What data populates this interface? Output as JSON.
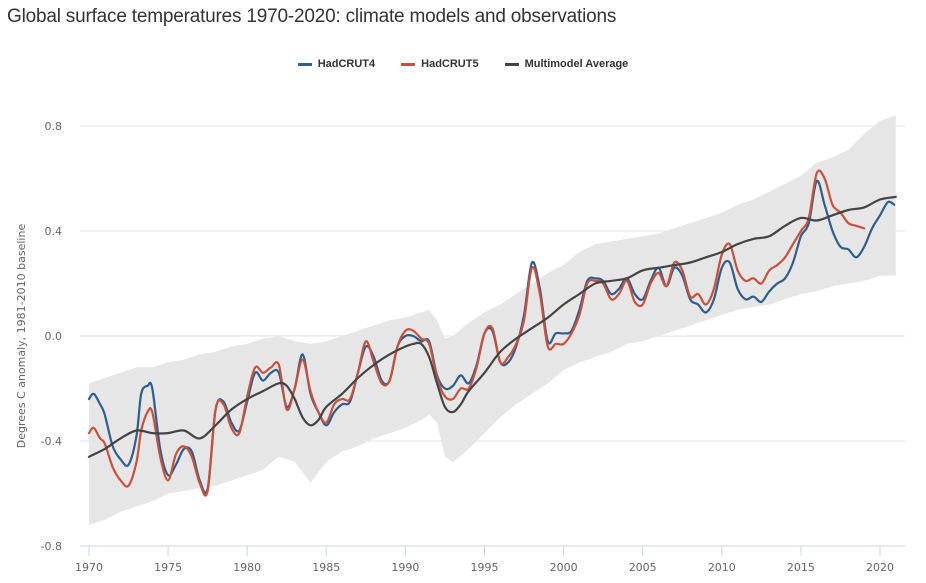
{
  "title": "Global surface temperatures 1970-2020: climate models and observations",
  "legend": [
    {
      "label": "HadCRUT4",
      "color": "#2e5e8c"
    },
    {
      "label": "HadCRUT5",
      "color": "#c8503c"
    },
    {
      "label": "Multimodel Average",
      "color": "#444444"
    }
  ],
  "chart_data": {
    "type": "line",
    "title": "Global surface temperatures 1970-2020: climate models and observations",
    "xlabel": "",
    "ylabel": "Degrees C anomaly, 1981-2010 baseline",
    "xlim": [
      1970,
      2021.2
    ],
    "ylim": [
      -0.8,
      0.85
    ],
    "x_ticks": [
      1970,
      1975,
      1980,
      1985,
      1990,
      1995,
      2000,
      2005,
      2010,
      2015,
      2020
    ],
    "y_ticks": [
      -0.8,
      -0.4,
      0.0,
      0.4,
      0.8
    ],
    "y_tick_labels": [
      "-0.8",
      "-0.4",
      "0.0",
      "0.4",
      "0.8"
    ],
    "grid": true,
    "legend_position": "top-center",
    "band": {
      "name": "Model range",
      "color": "#e6e6e6",
      "x": [
        1970,
        1971,
        1972,
        1973,
        1974,
        1975,
        1976,
        1977,
        1978,
        1979,
        1980,
        1981,
        1982,
        1983,
        1984,
        1985,
        1986,
        1987,
        1988,
        1989,
        1990,
        1991,
        1991.5,
        1992,
        1992.5,
        1993,
        1994,
        1995,
        1996,
        1997,
        1998,
        1999,
        2000,
        2001,
        2002,
        2003,
        2004,
        2005,
        2006,
        2007,
        2008,
        2009,
        2010,
        2011,
        2012,
        2013,
        2014,
        2015,
        2016,
        2017,
        2018,
        2019,
        2020,
        2021
      ],
      "upper": [
        -0.18,
        -0.16,
        -0.14,
        -0.12,
        -0.12,
        -0.1,
        -0.09,
        -0.07,
        -0.06,
        -0.04,
        -0.03,
        -0.01,
        0.0,
        -0.02,
        -0.03,
        -0.02,
        0.0,
        0.02,
        0.04,
        0.06,
        0.07,
        0.09,
        0.1,
        0.06,
        -0.01,
        0.0,
        0.05,
        0.09,
        0.12,
        0.16,
        0.2,
        0.24,
        0.27,
        0.32,
        0.35,
        0.36,
        0.37,
        0.38,
        0.39,
        0.41,
        0.43,
        0.45,
        0.47,
        0.5,
        0.52,
        0.55,
        0.58,
        0.61,
        0.66,
        0.68,
        0.71,
        0.77,
        0.82,
        0.84
      ],
      "lower": [
        -0.72,
        -0.7,
        -0.67,
        -0.65,
        -0.63,
        -0.6,
        -0.59,
        -0.58,
        -0.57,
        -0.55,
        -0.53,
        -0.51,
        -0.46,
        -0.48,
        -0.56,
        -0.48,
        -0.44,
        -0.42,
        -0.39,
        -0.37,
        -0.35,
        -0.32,
        -0.3,
        -0.33,
        -0.46,
        -0.48,
        -0.43,
        -0.37,
        -0.31,
        -0.26,
        -0.22,
        -0.18,
        -0.13,
        -0.1,
        -0.08,
        -0.06,
        -0.03,
        -0.02,
        0.0,
        0.02,
        0.04,
        0.06,
        0.08,
        0.1,
        0.11,
        0.12,
        0.14,
        0.16,
        0.17,
        0.19,
        0.2,
        0.21,
        0.23,
        0.23
      ]
    },
    "series": [
      {
        "name": "HadCRUT4",
        "color": "#2e5e8c",
        "x": [
          1970,
          1970.3,
          1970.7,
          1971,
          1971.5,
          1972,
          1972.5,
          1973,
          1973.3,
          1973.7,
          1974,
          1974.5,
          1975,
          1975.5,
          1976,
          1976.5,
          1977,
          1977.5,
          1978,
          1978.5,
          1979,
          1979.5,
          1980,
          1980.5,
          1981,
          1981.5,
          1982,
          1982.5,
          1983,
          1983.5,
          1984,
          1984.5,
          1985,
          1985.5,
          1986,
          1986.5,
          1987,
          1987.5,
          1988,
          1988.5,
          1989,
          1989.5,
          1990,
          1990.5,
          1991,
          1991.5,
          1992,
          1992.5,
          1993,
          1993.5,
          1994,
          1994.5,
          1995,
          1995.5,
          1996,
          1996.5,
          1997,
          1997.5,
          1998,
          1998.5,
          1999,
          1999.5,
          2000,
          2000.5,
          2001,
          2001.5,
          2002,
          2002.5,
          2003,
          2003.5,
          2004,
          2004.5,
          2005,
          2005.5,
          2006,
          2006.5,
          2007,
          2007.5,
          2008,
          2008.5,
          2009,
          2009.5,
          2010,
          2010.5,
          2011,
          2011.5,
          2012,
          2012.5,
          2013,
          2013.5,
          2014,
          2014.5,
          2015,
          2015.5,
          2016,
          2016.5,
          2017,
          2017.5,
          2018,
          2018.5,
          2019,
          2019.5,
          2020,
          2020.5,
          2020.9
        ],
        "values": [
          -0.24,
          -0.22,
          -0.26,
          -0.3,
          -0.42,
          -0.47,
          -0.49,
          -0.38,
          -0.22,
          -0.19,
          -0.2,
          -0.43,
          -0.53,
          -0.49,
          -0.43,
          -0.44,
          -0.55,
          -0.58,
          -0.28,
          -0.25,
          -0.33,
          -0.36,
          -0.25,
          -0.14,
          -0.17,
          -0.14,
          -0.14,
          -0.27,
          -0.2,
          -0.07,
          -0.22,
          -0.29,
          -0.34,
          -0.29,
          -0.26,
          -0.25,
          -0.14,
          -0.04,
          -0.08,
          -0.17,
          -0.17,
          -0.04,
          0.0,
          0.0,
          -0.02,
          -0.02,
          -0.15,
          -0.2,
          -0.19,
          -0.15,
          -0.18,
          -0.11,
          0.01,
          0.02,
          -0.1,
          -0.1,
          -0.04,
          0.08,
          0.28,
          0.18,
          -0.02,
          0.01,
          0.01,
          0.02,
          0.1,
          0.21,
          0.22,
          0.21,
          0.16,
          0.18,
          0.22,
          0.16,
          0.14,
          0.21,
          0.26,
          0.19,
          0.26,
          0.23,
          0.14,
          0.12,
          0.09,
          0.14,
          0.26,
          0.28,
          0.18,
          0.14,
          0.15,
          0.13,
          0.17,
          0.2,
          0.22,
          0.28,
          0.38,
          0.43,
          0.59,
          0.5,
          0.4,
          0.34,
          0.33,
          0.3,
          0.34,
          0.41,
          0.46,
          0.51,
          0.5
        ]
      },
      {
        "name": "HadCRUT5",
        "color": "#c8503c",
        "x": [
          1970,
          1970.3,
          1970.7,
          1971,
          1971.5,
          1972,
          1972.5,
          1973,
          1973.3,
          1973.7,
          1974,
          1974.5,
          1975,
          1975.5,
          1976,
          1976.5,
          1977,
          1977.5,
          1978,
          1978.5,
          1979,
          1979.5,
          1980,
          1980.5,
          1981,
          1981.5,
          1982,
          1982.5,
          1983,
          1983.5,
          1984,
          1984.5,
          1985,
          1985.5,
          1986,
          1986.5,
          1987,
          1987.5,
          1988,
          1988.5,
          1989,
          1989.5,
          1990,
          1990.5,
          1991,
          1991.5,
          1992,
          1992.5,
          1993,
          1993.5,
          1994,
          1994.5,
          1995,
          1995.5,
          1996,
          1996.5,
          1997,
          1997.5,
          1998,
          1998.5,
          1999,
          1999.5,
          2000,
          2000.5,
          2001,
          2001.5,
          2002,
          2002.5,
          2003,
          2003.5,
          2004,
          2004.5,
          2005,
          2005.5,
          2006,
          2006.5,
          2007,
          2007.5,
          2008,
          2008.5,
          2009,
          2009.5,
          2010,
          2010.5,
          2011,
          2011.5,
          2012,
          2012.5,
          2013,
          2013.5,
          2014,
          2014.5,
          2015,
          2015.5,
          2016,
          2016.5,
          2017,
          2017.5,
          2018,
          2018.5,
          2019
        ],
        "values": [
          -0.37,
          -0.35,
          -0.39,
          -0.41,
          -0.5,
          -0.55,
          -0.57,
          -0.48,
          -0.36,
          -0.29,
          -0.29,
          -0.46,
          -0.55,
          -0.45,
          -0.42,
          -0.46,
          -0.56,
          -0.59,
          -0.28,
          -0.26,
          -0.35,
          -0.37,
          -0.23,
          -0.12,
          -0.14,
          -0.12,
          -0.11,
          -0.28,
          -0.2,
          -0.09,
          -0.21,
          -0.29,
          -0.33,
          -0.26,
          -0.24,
          -0.24,
          -0.14,
          -0.02,
          -0.1,
          -0.18,
          -0.17,
          -0.04,
          0.02,
          0.02,
          -0.01,
          -0.03,
          -0.16,
          -0.23,
          -0.24,
          -0.2,
          -0.2,
          -0.12,
          0.01,
          0.03,
          -0.1,
          -0.08,
          -0.03,
          0.06,
          0.26,
          0.16,
          -0.04,
          -0.03,
          -0.03,
          0.01,
          0.08,
          0.2,
          0.21,
          0.2,
          0.14,
          0.16,
          0.21,
          0.13,
          0.12,
          0.2,
          0.24,
          0.19,
          0.28,
          0.25,
          0.15,
          0.16,
          0.12,
          0.18,
          0.31,
          0.35,
          0.25,
          0.21,
          0.22,
          0.2,
          0.25,
          0.27,
          0.3,
          0.35,
          0.4,
          0.45,
          0.62,
          0.6,
          0.5,
          0.47,
          0.43,
          0.42,
          0.41
        ]
      },
      {
        "name": "Multimodel Average",
        "color": "#444444",
        "x": [
          1970,
          1971,
          1972,
          1973,
          1974,
          1975,
          1976,
          1977,
          1978,
          1979,
          1980,
          1981,
          1982,
          1982.5,
          1983,
          1983.5,
          1984,
          1984.5,
          1985,
          1986,
          1987,
          1988,
          1989,
          1990,
          1990.5,
          1991,
          1991.5,
          1992,
          1992.5,
          1993,
          1993.5,
          1994,
          1995,
          1996,
          1997,
          1998,
          1999,
          2000,
          2001,
          2002,
          2003,
          2004,
          2005,
          2006,
          2007,
          2008,
          2009,
          2010,
          2011,
          2012,
          2013,
          2014,
          2015,
          2016,
          2017,
          2018,
          2019,
          2020,
          2021
        ],
        "values": [
          -0.46,
          -0.43,
          -0.39,
          -0.36,
          -0.37,
          -0.37,
          -0.36,
          -0.39,
          -0.34,
          -0.28,
          -0.24,
          -0.21,
          -0.18,
          -0.19,
          -0.24,
          -0.31,
          -0.34,
          -0.32,
          -0.27,
          -0.22,
          -0.16,
          -0.11,
          -0.07,
          -0.04,
          -0.03,
          -0.03,
          -0.08,
          -0.18,
          -0.27,
          -0.29,
          -0.26,
          -0.21,
          -0.14,
          -0.06,
          -0.01,
          0.03,
          0.07,
          0.12,
          0.16,
          0.2,
          0.21,
          0.22,
          0.25,
          0.26,
          0.27,
          0.28,
          0.3,
          0.32,
          0.35,
          0.37,
          0.38,
          0.42,
          0.45,
          0.44,
          0.46,
          0.48,
          0.49,
          0.52,
          0.53
        ]
      }
    ]
  }
}
